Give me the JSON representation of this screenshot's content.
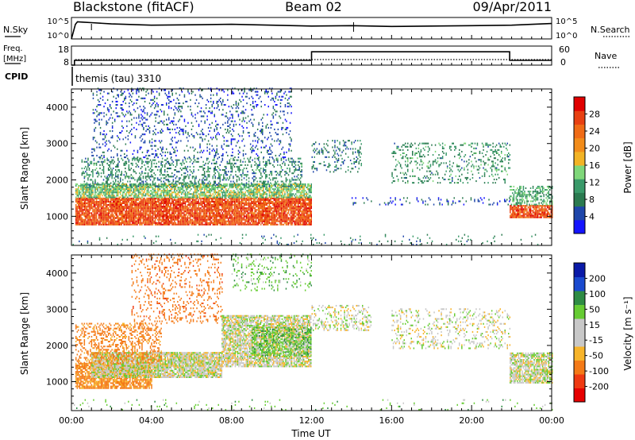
{
  "header": {
    "station": "Blackstone (fitACF)",
    "beam": "Beam 02",
    "date": "09/Apr/2011"
  },
  "noise_panel": {
    "left_label": "N.Sky",
    "right_label": "N.Search",
    "left_ticks": [
      "10^5",
      "10^0"
    ],
    "right_ticks": [
      "10^5",
      "10^0"
    ]
  },
  "freq_panel": {
    "left_label_line1": "Freq.",
    "left_label_line2": "[MHz]",
    "right_label": "Nave",
    "left_ticks": [
      "18",
      "8"
    ],
    "right_ticks": [
      "60",
      "0"
    ]
  },
  "cpid_panel": {
    "label": "CPID",
    "value": "themis (tau) 3310"
  },
  "colors": {
    "power": [
      "#1414ff",
      "#1e46aa",
      "#2b7a50",
      "#3a9a6a",
      "#7fd77a",
      "#f2b325",
      "#f28c1a",
      "#f06b16",
      "#e84012",
      "#e00000"
    ],
    "velocity": [
      "#0a1aa8",
      "#1a4acf",
      "#2e8c44",
      "#66cc33",
      "#c8c8c8",
      "#c8c8c8",
      "#f7b42a",
      "#f47a17",
      "#ef3a12",
      "#e60000"
    ]
  },
  "chart_data": [
    {
      "type": "heatmap",
      "name": "power",
      "ylabel": "Slant Range [km]",
      "yticks": [
        1000,
        2000,
        3000,
        4000
      ],
      "ylim": [
        200,
        4500
      ],
      "xlim": [
        0,
        24
      ],
      "colorbar": {
        "label": "Power [dB]",
        "ticks": [
          4,
          8,
          12,
          16,
          20,
          24,
          28
        ],
        "range": [
          0,
          32
        ]
      },
      "regions": [
        {
          "t0": 0.2,
          "t1": 12.0,
          "r0": 750,
          "r1": 1500,
          "dens": 0.9,
          "v": 26
        },
        {
          "t0": 0.2,
          "t1": 12.0,
          "r0": 1500,
          "r1": 1900,
          "dens": 0.75,
          "v": 14
        },
        {
          "t0": 0.5,
          "t1": 11.5,
          "r0": 1800,
          "r1": 2600,
          "dens": 0.3,
          "v": 9
        },
        {
          "t0": 1.0,
          "t1": 11.0,
          "r0": 2600,
          "r1": 4500,
          "dens": 0.15,
          "v": 5
        },
        {
          "t0": 12.0,
          "t1": 14.5,
          "r0": 2200,
          "r1": 3100,
          "dens": 0.2,
          "v": 8
        },
        {
          "t0": 14.0,
          "t1": 21.9,
          "r0": 1300,
          "r1": 1500,
          "dens": 0.12,
          "v": 5
        },
        {
          "t0": 16.0,
          "t1": 21.9,
          "r0": 1900,
          "r1": 3000,
          "dens": 0.18,
          "v": 10
        },
        {
          "t0": 21.9,
          "t1": 24.0,
          "r0": 950,
          "r1": 1300,
          "dens": 0.85,
          "v": 26
        },
        {
          "t0": 21.9,
          "t1": 24.0,
          "r0": 1300,
          "r1": 1800,
          "dens": 0.45,
          "v": 12
        },
        {
          "t0": 0.0,
          "t1": 24.0,
          "r0": 200,
          "r1": 500,
          "dens": 0.04,
          "v": 8
        }
      ]
    },
    {
      "type": "heatmap",
      "name": "velocity",
      "ylabel": "Slant Range [km]",
      "xlabel": "Time UT",
      "xticks": [
        "00:00",
        "04:00",
        "08:00",
        "12:00",
        "16:00",
        "20:00",
        "00:00"
      ],
      "yticks": [
        1000,
        2000,
        3000,
        4000
      ],
      "ylim": [
        200,
        4500
      ],
      "xlim": [
        0,
        24
      ],
      "colorbar": {
        "label": "Velocity [m s⁻¹]",
        "ticks": [
          -200,
          -100,
          -50,
          -15,
          15,
          50,
          100,
          200
        ]
      },
      "regions": [
        {
          "t0": 0.2,
          "t1": 4.0,
          "r0": 800,
          "r1": 1500,
          "dens": 0.8,
          "v": -60
        },
        {
          "t0": 1.0,
          "t1": 7.5,
          "r0": 1100,
          "r1": 1800,
          "dens": 0.9,
          "v": 0
        },
        {
          "t0": 0.2,
          "t1": 4.5,
          "r0": 1500,
          "r1": 2600,
          "dens": 0.35,
          "v": -70
        },
        {
          "t0": 3.0,
          "t1": 7.5,
          "r0": 2600,
          "r1": 4500,
          "dens": 0.18,
          "v": -80
        },
        {
          "t0": 7.5,
          "t1": 12.0,
          "r0": 1400,
          "r1": 2800,
          "dens": 0.8,
          "v": 0
        },
        {
          "t0": 9.0,
          "t1": 12.0,
          "r0": 1700,
          "r1": 2500,
          "dens": 0.4,
          "v": 40
        },
        {
          "t0": 8.0,
          "t1": 12.0,
          "r0": 3500,
          "r1": 4500,
          "dens": 0.15,
          "v": 35
        },
        {
          "t0": 12.0,
          "t1": 15.0,
          "r0": 2400,
          "r1": 3100,
          "dens": 0.3,
          "v": 0
        },
        {
          "t0": 16.0,
          "t1": 21.9,
          "r0": 1900,
          "r1": 3000,
          "dens": 0.2,
          "v": 0
        },
        {
          "t0": 21.9,
          "t1": 24.0,
          "r0": 950,
          "r1": 1800,
          "dens": 0.8,
          "v": 0
        },
        {
          "t0": 0.0,
          "t1": 24.0,
          "r0": 200,
          "r1": 500,
          "dens": 0.04,
          "v": 30
        }
      ]
    },
    {
      "type": "line",
      "name": "noise-sky",
      "x": [
        0,
        0.2,
        0.3,
        0.6,
        1,
        2,
        4,
        6,
        8,
        10,
        12,
        14,
        16,
        18,
        20,
        22,
        24
      ],
      "y": [
        0,
        3.4,
        4.0,
        3.9,
        3.8,
        3.5,
        3.2,
        3.3,
        3.4,
        3.2,
        3.0,
        3.1,
        2.9,
        3.0,
        3.1,
        3.2,
        3.6
      ],
      "ylim": [
        0,
        5
      ]
    },
    {
      "type": "line",
      "name": "frequency",
      "x": [
        0,
        0.15,
        0.15,
        12,
        12,
        21.9,
        21.9,
        24
      ],
      "y": [
        8,
        8,
        10.5,
        10.5,
        15,
        15,
        10.5,
        10.5
      ],
      "ylim": [
        8,
        18
      ]
    }
  ]
}
